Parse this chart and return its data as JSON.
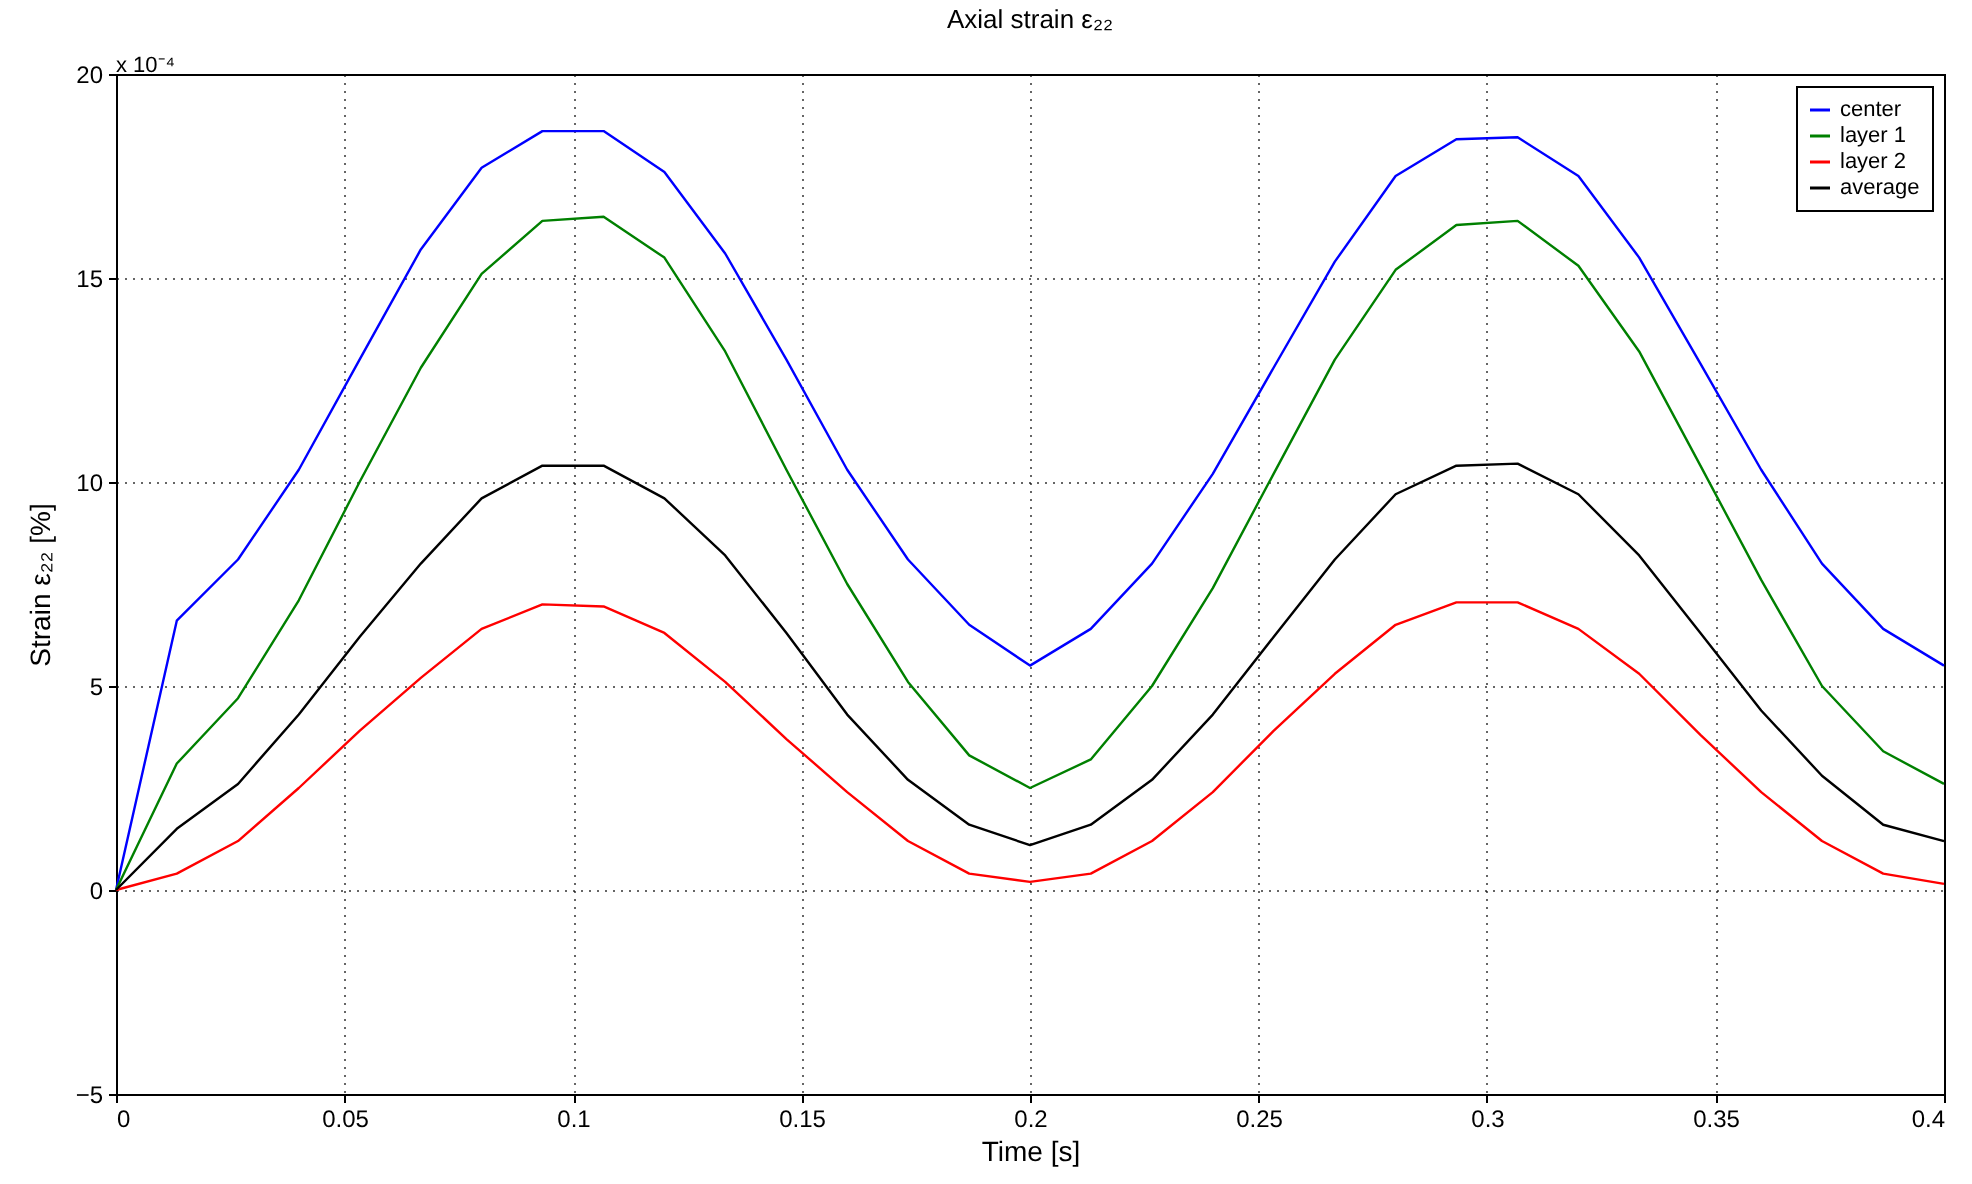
{
  "chart_data": {
    "type": "line",
    "title": "Axial strain ε₂₂",
    "xlabel": "Time [s]",
    "ylabel": "Strain ε₂₂ [%]",
    "annotations": [
      "x 10⁻⁴"
    ],
    "x": [
      0,
      0.0133,
      0.0267,
      0.04,
      0.0533,
      0.0667,
      0.08,
      0.0933,
      0.1067,
      0.12,
      0.1333,
      0.1467,
      0.16,
      0.1733,
      0.1867,
      0.2,
      0.2133,
      0.2267,
      0.24,
      0.2533,
      0.2667,
      0.28,
      0.2933,
      0.3067,
      0.32,
      0.3333,
      0.3467,
      0.36,
      0.3733,
      0.3867,
      0.4
    ],
    "series": [
      {
        "name": "center",
        "color": "#0000ff",
        "values": [
          0,
          6.6,
          8.1,
          10.3,
          13,
          15.7,
          17.7,
          18.6,
          18.6,
          17.6,
          15.6,
          13,
          10.3,
          8.1,
          6.5,
          5.5,
          6.4,
          8,
          10.2,
          12.8,
          15.4,
          17.5,
          18.4,
          18.45,
          17.5,
          15.5,
          12.9,
          10.3,
          8,
          6.4,
          5.5
        ]
      },
      {
        "name": "layer 1",
        "color": "#008000",
        "values": [
          0,
          3.1,
          4.7,
          7.1,
          10,
          12.8,
          15.1,
          16.4,
          16.5,
          15.5,
          13.2,
          10.3,
          7.5,
          5.1,
          3.3,
          2.5,
          3.2,
          5,
          7.4,
          10.2,
          13,
          15.2,
          16.3,
          16.4,
          15.3,
          13.2,
          10.4,
          7.6,
          5,
          3.4,
          2.6
        ]
      },
      {
        "name": "layer 2",
        "color": "#ff0000",
        "values": [
          0,
          0.4,
          1.2,
          2.5,
          3.9,
          5.2,
          6.4,
          7,
          6.95,
          6.3,
          5.1,
          3.7,
          2.4,
          1.2,
          0.4,
          0.2,
          0.4,
          1.2,
          2.4,
          3.9,
          5.3,
          6.5,
          7.05,
          7.05,
          6.4,
          5.3,
          3.8,
          2.4,
          1.2,
          0.4,
          0.15
        ]
      },
      {
        "name": "average",
        "color": "#000000",
        "values": [
          0,
          1.5,
          2.6,
          4.3,
          6.2,
          8,
          9.6,
          10.4,
          10.4,
          9.6,
          8.2,
          6.3,
          4.3,
          2.7,
          1.6,
          1.1,
          1.6,
          2.7,
          4.3,
          6.2,
          8.1,
          9.7,
          10.4,
          10.45,
          9.7,
          8.2,
          6.3,
          4.4,
          2.8,
          1.6,
          1.2
        ]
      }
    ],
    "xlim": [
      0,
      0.4
    ],
    "xticks": [
      0,
      0.05,
      0.1,
      0.15,
      0.2,
      0.25,
      0.3,
      0.35,
      0.4
    ],
    "ylim": [
      -5,
      20
    ],
    "yticks": [
      -5,
      0,
      5,
      10,
      15,
      20
    ],
    "grid": true,
    "legend": "top right",
    "line_style": "solid"
  }
}
